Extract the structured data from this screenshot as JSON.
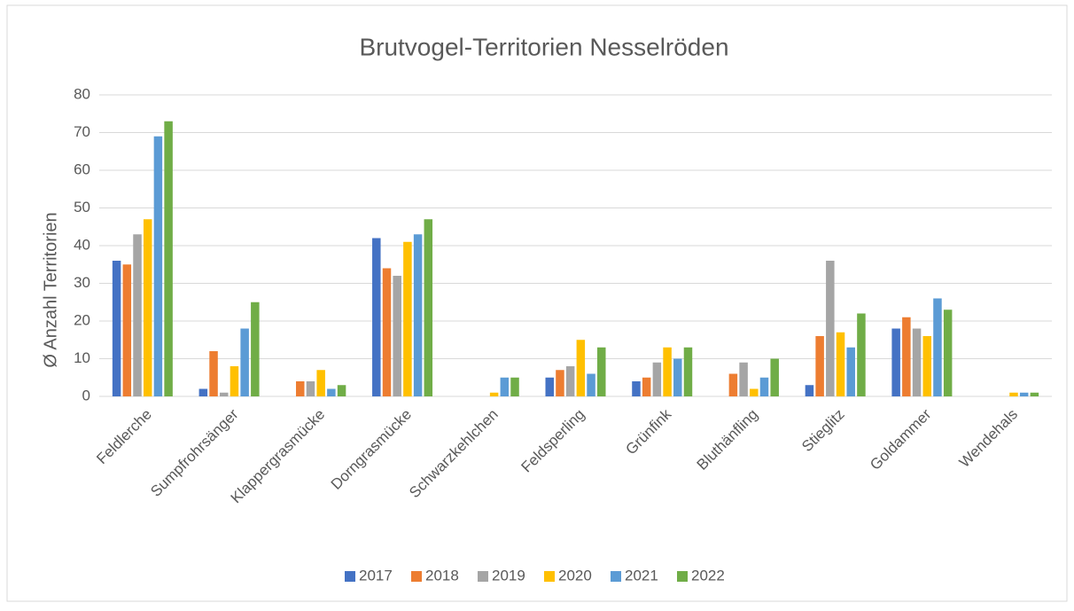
{
  "chart_data": {
    "type": "bar",
    "title": "Brutvogel-Territorien Nesselröden",
    "y_label": "Ø Anzahl Territorien",
    "categories": [
      "Feldlerche",
      "Sumpfrohrsänger",
      "Klappergrasmücke",
      "Dorngrasmücke",
      "Schwarzkehlchen",
      "Feldsperling",
      "Grünfink",
      "Bluthänfling",
      "Stieglitz",
      "Goldammer",
      "Wendehals"
    ],
    "series": [
      {
        "name": "2017",
        "color": "#4472c4",
        "values": [
          36,
          2,
          0,
          42,
          0,
          5,
          4,
          0,
          3,
          18,
          0
        ]
      },
      {
        "name": "2018",
        "color": "#ed7d31",
        "values": [
          35,
          12,
          4,
          34,
          0,
          7,
          5,
          6,
          16,
          21,
          0
        ]
      },
      {
        "name": "2019",
        "color": "#a5a5a5",
        "values": [
          43,
          1,
          4,
          32,
          0,
          8,
          9,
          9,
          36,
          18,
          0
        ]
      },
      {
        "name": "2020",
        "color": "#ffc000",
        "values": [
          47,
          8,
          7,
          41,
          1,
          15,
          13,
          2,
          17,
          16,
          1
        ]
      },
      {
        "name": "2021",
        "color": "#5b9bd5",
        "values": [
          69,
          18,
          2,
          43,
          5,
          6,
          10,
          5,
          13,
          26,
          1
        ]
      },
      {
        "name": "2022",
        "color": "#70ad47",
        "values": [
          73,
          25,
          3,
          47,
          5,
          13,
          13,
          10,
          22,
          23,
          1
        ]
      }
    ],
    "ylim": [
      0,
      80
    ],
    "yticks": [
      0,
      10,
      20,
      30,
      40,
      50,
      60,
      70,
      80
    ],
    "grid": true,
    "legend": "bottom"
  }
}
